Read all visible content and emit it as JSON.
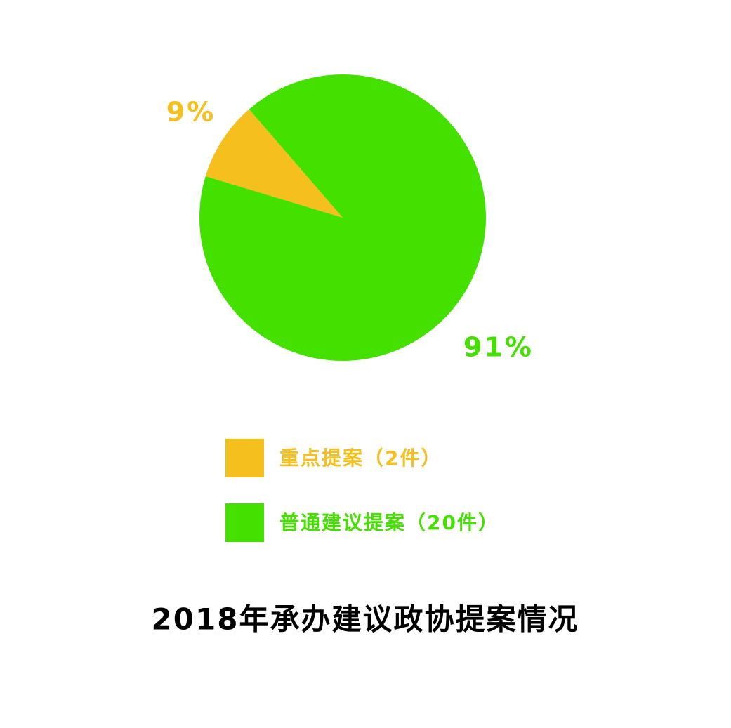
{
  "chart_data": {
    "type": "pie",
    "title": "2018年承办建议政协提案情况",
    "categories": [
      "重点提案（2件）",
      "普通建议提案（20件）"
    ],
    "values": [
      9,
      91
    ],
    "value_labels": [
      "9%",
      "91%"
    ],
    "colors": [
      "#f5bf1e",
      "#44e000"
    ]
  }
}
